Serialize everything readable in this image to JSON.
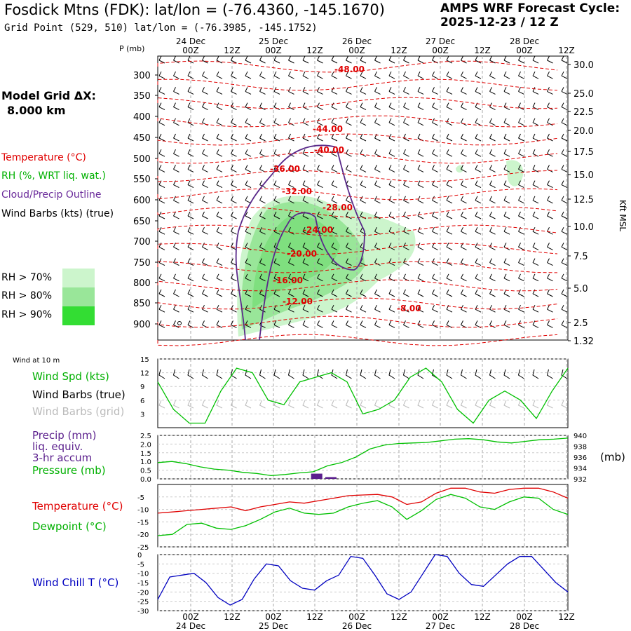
{
  "header": {
    "title": "Fosdick Mtns (FDK):  lat/lon = (-76.4360, -145.1670)",
    "subtitle": "Grid Point (529, 510) lat/lon = (-76.3985, -145.1752)",
    "cycle_label": "AMPS WRF Forecast Cycle:",
    "cycle_value": "2025-12-23 / 12  Z"
  },
  "model_grid": {
    "label": "Model Grid ΔX:",
    "value": "8.000 km"
  },
  "legend_top": {
    "temperature": "Temperature (°C)",
    "rh": "RH (%, WRT liq. wat.)",
    "cloud": "Cloud/Precip Outline",
    "wind": "Wind Barbs (kts) (true)",
    "rh_levels": [
      "RH > 70%",
      "RH > 80%",
      "RH > 90%"
    ]
  },
  "legend_panels": {
    "wind_header": "Wind at 10 m",
    "wind_spd": "Wind Spd (kts)",
    "barbs_true": "Wind Barbs (true)",
    "barbs_grid": "Wind Barbs (grid)",
    "precip1": "Precip (mm)",
    "precip2": "liq. equiv.",
    "precip3": "3-hr accum",
    "pressure": "Pressure (mb)",
    "temperature": "Temperature (°C)",
    "dewpoint": "Dewpoint (°C)",
    "windchill": "Wind Chill T (°C)",
    "mb_unit": "(mb)"
  },
  "colors": {
    "temp": "#e00000",
    "rh70": "#ccf5cc",
    "rh80": "#99e699",
    "rh90": "#33dd33",
    "cloud": "#5a2a8a",
    "green": "#00c000",
    "purple": "#5a1e8c",
    "blue": "#0000c0",
    "grey": "#bbbbbb"
  },
  "chart_data": [
    {
      "type": "cross-section",
      "time_top_labels": [
        [
          "24 Dec",
          "00Z"
        ],
        [
          "",
          "12Z"
        ],
        [
          "25 Dec",
          "00Z"
        ],
        [
          "",
          "12Z"
        ],
        [
          "26 Dec",
          "00Z"
        ],
        [
          "",
          "12Z"
        ],
        [
          "27 Dec",
          "00Z"
        ],
        [
          "",
          "12Z"
        ],
        [
          "28 Dec",
          "00Z"
        ],
        [
          "",
          "12Z"
        ]
      ],
      "y_left_label": "P (mb)",
      "pressure_ticks": [
        300,
        350,
        400,
        450,
        500,
        550,
        600,
        650,
        700,
        750,
        800,
        850,
        900
      ],
      "height_ticks": [
        "30.0",
        "25.0",
        "22.5",
        "20.0",
        "17.5",
        "15.0",
        "12.5",
        "10.0",
        "7.5",
        "5.0",
        "2.5",
        "1.32"
      ],
      "y_right_label": "Kft MSL",
      "isotherm_labels": [
        "-48.00",
        "-44.00",
        "-40.00",
        "-36.00",
        "-32.00",
        "-28.00",
        "-24.00",
        "-20.00",
        "-16.00",
        "-12.00",
        "-8.00"
      ]
    },
    {
      "type": "line",
      "panel": "wind",
      "yticks": [
        3,
        6,
        9,
        12,
        15
      ],
      "ylim": [
        0,
        15
      ],
      "series": [
        {
          "name": "Wind Spd (kts)",
          "values": [
            10,
            4,
            1,
            1,
            8,
            13,
            12,
            6,
            5,
            10,
            11,
            12,
            10,
            3,
            4,
            6,
            11,
            13,
            10,
            4,
            1,
            6,
            8,
            6,
            2,
            8,
            13
          ]
        }
      ]
    },
    {
      "type": "line",
      "panel": "precip_pressure",
      "left_ticks": [
        "2.5",
        "2.0",
        "1.5",
        "1.0",
        "0.5",
        "0.0"
      ],
      "right_ticks": [
        "940",
        "938",
        "936",
        "934",
        "932"
      ],
      "ylim_left": [
        0,
        2.5
      ],
      "ylim_right": [
        932,
        940
      ],
      "precip_bars": [
        {
          "t": 10,
          "v": 0.3
        },
        {
          "t": 11,
          "v": 0.1
        }
      ],
      "series": [
        {
          "name": "Pressure (mb)",
          "values": [
            935.0,
            935.2,
            934.8,
            934.2,
            933.8,
            933.6,
            933.2,
            933.0,
            932.6,
            932.8,
            933.1,
            933.3,
            934.4,
            935.0,
            936.0,
            937.5,
            938.2,
            938.5,
            938.6,
            938.7,
            939.0,
            939.3,
            939.4,
            939.2,
            938.8,
            938.6,
            938.9,
            939.2,
            939.3,
            939.5
          ]
        }
      ]
    },
    {
      "type": "line",
      "panel": "temp_dew",
      "yticks": [
        "-5",
        "-10",
        "-15",
        "-20",
        "-25"
      ],
      "ylim": [
        -25,
        0
      ],
      "series": [
        {
          "name": "Temperature (°C)",
          "values": [
            -11.5,
            -11,
            -10.5,
            -10,
            -9.5,
            -9,
            -10.5,
            -9,
            -8,
            -7,
            -7.5,
            -6.5,
            -5.5,
            -4.5,
            -4.2,
            -4,
            -5,
            -8,
            -7,
            -3.5,
            -1.5,
            -1.5,
            -3,
            -3.5,
            -2,
            -1.5,
            -1.5,
            -3,
            -5.5
          ]
        },
        {
          "name": "Dewpoint (°C)",
          "values": [
            -20.5,
            -20,
            -16,
            -15.5,
            -17.5,
            -18,
            -16.5,
            -14,
            -11,
            -9.5,
            -11.5,
            -12,
            -11.5,
            -9,
            -7.5,
            -6.5,
            -9,
            -14,
            -10.5,
            -6,
            -4,
            -5.5,
            -9,
            -10,
            -7,
            -5,
            -5.5,
            -10,
            -12
          ]
        }
      ]
    },
    {
      "type": "line",
      "panel": "windchill",
      "yticks": [
        "0",
        "-5",
        "-10",
        "-15",
        "-20",
        "-25",
        "-30"
      ],
      "ylim": [
        -30,
        0
      ],
      "series": [
        {
          "name": "Wind Chill T (°C)",
          "values": [
            -24,
            -12,
            -11,
            -10,
            -15,
            -23,
            -27,
            -24,
            -13,
            -5,
            -6,
            -14,
            -18,
            -19,
            -14,
            -11,
            -1,
            -2,
            -11,
            -21,
            -24,
            -20,
            -10,
            0,
            -1,
            -10,
            -16,
            -17,
            -11,
            -5,
            -1,
            -1,
            -8,
            -15,
            -20
          ]
        }
      ]
    }
  ],
  "bottom_axis": [
    [
      "00Z",
      "24 Dec"
    ],
    [
      "12Z",
      ""
    ],
    [
      "00Z",
      "25 Dec"
    ],
    [
      "12Z",
      ""
    ],
    [
      "00Z",
      "26 Dec"
    ],
    [
      "12Z",
      ""
    ],
    [
      "00Z",
      "27 Dec"
    ],
    [
      "12Z",
      ""
    ],
    [
      "00Z",
      "28 Dec"
    ],
    [
      "12Z",
      ""
    ]
  ]
}
